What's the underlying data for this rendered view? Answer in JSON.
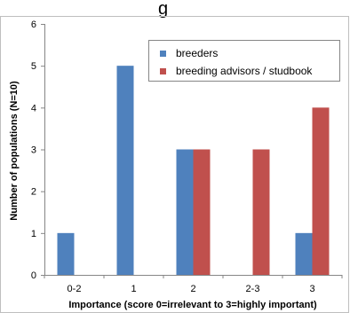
{
  "header_fragment": "g",
  "chart_data": {
    "type": "bar",
    "categories": [
      "0-2",
      "1",
      "2",
      "2-3",
      "3"
    ],
    "series": [
      {
        "name": "breeders",
        "values": [
          1,
          5,
          3,
          0,
          1
        ],
        "color": "#4F81BD"
      },
      {
        "name": "breeding advisors / studbook",
        "values": [
          0,
          0,
          3,
          3,
          4
        ],
        "color": "#C0504D"
      }
    ],
    "xlabel": "Importance (score 0=irrelevant to 3=highly important)",
    "ylabel": "Number of populations (N=10)",
    "ylim": [
      0,
      6
    ],
    "yticks": [
      0,
      1,
      2,
      3,
      4,
      5,
      6
    ],
    "grid": false,
    "legend_position": "top-right"
  }
}
